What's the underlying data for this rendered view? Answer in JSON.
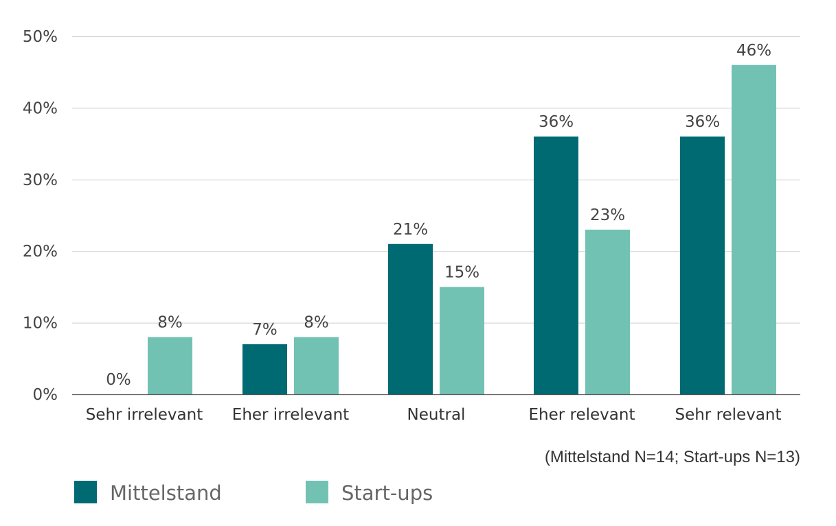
{
  "chart_data": {
    "type": "bar",
    "categories": [
      "Sehr irrelevant",
      "Eher irrelevant",
      "Neutral",
      "Eher relevant",
      "Sehr relevant"
    ],
    "series": [
      {
        "name": "Mittelstand",
        "values": [
          0,
          7,
          21,
          36,
          36
        ],
        "labels": [
          "0%",
          "7%",
          "21%",
          "36%",
          "36%"
        ],
        "color": "#006a73"
      },
      {
        "name": "Start-ups",
        "values": [
          8,
          8,
          15,
          23,
          46
        ],
        "labels": [
          "8%",
          "8%",
          "15%",
          "23%",
          "46%"
        ],
        "color": "#72c2b4"
      }
    ],
    "yticks": [
      "0%",
      "10%",
      "20%",
      "30%",
      "40%",
      "50%"
    ],
    "ylim": [
      0,
      50
    ],
    "grid": true,
    "note": "(Mittelstand N=14; Start-ups N=13)",
    "legend_position": "bottom-left"
  }
}
